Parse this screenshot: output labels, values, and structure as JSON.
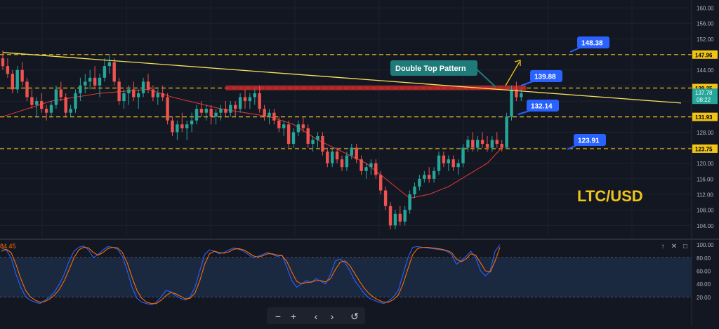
{
  "theme": {
    "background": "#131722",
    "grid": "#1e2230",
    "up": "#26a69a",
    "down": "#ef5350",
    "level_line": "#f0c419",
    "trendline": "#f5e15a",
    "ma_line": "#e53935",
    "callout_bg": "#2962ff",
    "pattern_bg": "#1f7a7a",
    "zone": "#c62828",
    "stoch_k": "#2962ff",
    "stoch_d": "#ff6d00",
    "osc_band": "#1c2a44",
    "pair_label": "#f0c419",
    "axis_text": "#b2b5be"
  },
  "chart_data": [
    {
      "type": "candlestick",
      "title": "LTC/USD",
      "ylim": [
        101,
        162
      ],
      "y_ticks": [
        104,
        108,
        112,
        116,
        120,
        124,
        128,
        132,
        136,
        140,
        144,
        148,
        152,
        156,
        160
      ],
      "y_tick_labels": [
        "104.00",
        "108.00",
        "112.00",
        "116.00",
        "120.00",
        "124.00",
        "128.00",
        "132.00",
        "136.00",
        "140.00",
        "144.00",
        "148.00",
        "152.00",
        "156.00",
        "160.00"
      ],
      "ohlc": [
        [
          147,
          149,
          144,
          145
        ],
        [
          145,
          147,
          142,
          143
        ],
        [
          143,
          144,
          138,
          139
        ],
        [
          139,
          145,
          138,
          144
        ],
        [
          144,
          146,
          140,
          141
        ],
        [
          141,
          142,
          136,
          137
        ],
        [
          137,
          139,
          134,
          135
        ],
        [
          135,
          137,
          132,
          136
        ],
        [
          136,
          138,
          133,
          134
        ],
        [
          134,
          135,
          131,
          133
        ],
        [
          133,
          136,
          132,
          135
        ],
        [
          135,
          140,
          134,
          139
        ],
        [
          139,
          141,
          136,
          137
        ],
        [
          137,
          138,
          132,
          133
        ],
        [
          133,
          135,
          132,
          134
        ],
        [
          134,
          139,
          133,
          138
        ],
        [
          138,
          142,
          136,
          140
        ],
        [
          140,
          143,
          138,
          141
        ],
        [
          141,
          144,
          139,
          142
        ],
        [
          142,
          145,
          139,
          140
        ],
        [
          140,
          143,
          137,
          142
        ],
        [
          142,
          147,
          141,
          145
        ],
        [
          145,
          148,
          143,
          146
        ],
        [
          146,
          147,
          140,
          141
        ],
        [
          141,
          142,
          135,
          136
        ],
        [
          136,
          139,
          134,
          138
        ],
        [
          138,
          140,
          135,
          139
        ],
        [
          139,
          141,
          136,
          137
        ],
        [
          137,
          139,
          134,
          138
        ],
        [
          138,
          142,
          137,
          141
        ],
        [
          141,
          143,
          138,
          139
        ],
        [
          139,
          140,
          136,
          137
        ],
        [
          137,
          139,
          135,
          138
        ],
        [
          138,
          140,
          136,
          137
        ],
        [
          137,
          138,
          130,
          131
        ],
        [
          131,
          132,
          127,
          128
        ],
        [
          128,
          131,
          126,
          130
        ],
        [
          130,
          133,
          128,
          129
        ],
        [
          129,
          131,
          126,
          130
        ],
        [
          130,
          133,
          128,
          131
        ],
        [
          131,
          135,
          130,
          134
        ],
        [
          134,
          136,
          132,
          133
        ],
        [
          133,
          135,
          131,
          134
        ],
        [
          134,
          135,
          130,
          132
        ],
        [
          132,
          134,
          130,
          133
        ],
        [
          133,
          135,
          131,
          134
        ],
        [
          134,
          136,
          132,
          133
        ],
        [
          133,
          136,
          132,
          135
        ],
        [
          135,
          136,
          132,
          134
        ],
        [
          134,
          138,
          133,
          137
        ],
        [
          137,
          139,
          134,
          136
        ],
        [
          136,
          138,
          134,
          137
        ],
        [
          137,
          139,
          135,
          138
        ],
        [
          138,
          140,
          133,
          134
        ],
        [
          134,
          135,
          131,
          132
        ],
        [
          132,
          134,
          130,
          133
        ],
        [
          133,
          134,
          130,
          131
        ],
        [
          131,
          132,
          128,
          129
        ],
        [
          129,
          131,
          127,
          130
        ],
        [
          130,
          131,
          124,
          125
        ],
        [
          125,
          129,
          124,
          128
        ],
        [
          128,
          131,
          127,
          130
        ],
        [
          130,
          132,
          128,
          129
        ],
        [
          129,
          130,
          124,
          125
        ],
        [
          125,
          127,
          123,
          126
        ],
        [
          126,
          128,
          124,
          127
        ],
        [
          127,
          128,
          122,
          123
        ],
        [
          123,
          124,
          119,
          120
        ],
        [
          120,
          124,
          119,
          123
        ],
        [
          123,
          124,
          120,
          121
        ],
        [
          121,
          122,
          118,
          119
        ],
        [
          119,
          123,
          118,
          122
        ],
        [
          122,
          125,
          121,
          124
        ],
        [
          124,
          125,
          120,
          121
        ],
        [
          121,
          122,
          117,
          118
        ],
        [
          118,
          120,
          116,
          119
        ],
        [
          119,
          121,
          117,
          120
        ],
        [
          120,
          121,
          116,
          117
        ],
        [
          117,
          118,
          112,
          113
        ],
        [
          113,
          114,
          108,
          109
        ],
        [
          109,
          110,
          103,
          104
        ],
        [
          104,
          108,
          103,
          107
        ],
        [
          107,
          109,
          104,
          105
        ],
        [
          105,
          109,
          104,
          108
        ],
        [
          108,
          113,
          107,
          112
        ],
        [
          112,
          115,
          111,
          114
        ],
        [
          114,
          117,
          113,
          116
        ],
        [
          116,
          118,
          115,
          117
        ],
        [
          117,
          119,
          115,
          116
        ],
        [
          116,
          119,
          115,
          118
        ],
        [
          118,
          123,
          117,
          122
        ],
        [
          122,
          123,
          119,
          120
        ],
        [
          120,
          122,
          118,
          121
        ],
        [
          121,
          122,
          118,
          119
        ],
        [
          119,
          121,
          117,
          120
        ],
        [
          120,
          125,
          119,
          124
        ],
        [
          124,
          127,
          123,
          126
        ],
        [
          126,
          128,
          123,
          124
        ],
        [
          124,
          127,
          123,
          126
        ],
        [
          126,
          128,
          124,
          125
        ],
        [
          125,
          127,
          123,
          124
        ],
        [
          124,
          127,
          123,
          126
        ],
        [
          126,
          128,
          124,
          125
        ],
        [
          125,
          126,
          123,
          124
        ],
        [
          124,
          133,
          124,
          132
        ],
        [
          132,
          140,
          131,
          139
        ],
        [
          139,
          141,
          136,
          137
        ],
        [
          137,
          139,
          136,
          138
        ]
      ],
      "ma": [
        [
          0,
          132
        ],
        [
          10,
          136
        ],
        [
          20,
          138
        ],
        [
          30,
          139
        ],
        [
          35,
          137
        ],
        [
          45,
          134
        ],
        [
          55,
          132
        ],
        [
          60,
          130
        ],
        [
          65,
          126
        ],
        [
          70,
          123
        ],
        [
          75,
          120
        ],
        [
          80,
          115
        ],
        [
          84,
          111
        ],
        [
          88,
          112
        ],
        [
          92,
          114
        ],
        [
          96,
          117
        ],
        [
          100,
          120
        ],
        [
          103,
          124
        ]
      ],
      "levels": [
        {
          "price": 147.96,
          "label": "147.96"
        },
        {
          "price": 139.35,
          "label": "139.35"
        },
        {
          "price": 131.93,
          "label": "131.93"
        },
        {
          "price": 123.75,
          "label": "123.75"
        }
      ],
      "last_price": {
        "value": "137.78",
        "countdown": "08:22"
      },
      "trendline": [
        [
          0,
          148.5
        ],
        [
          140,
          135.5
        ]
      ],
      "resistance_zone": {
        "from_index": 46,
        "to_index": 108,
        "low": 138.8,
        "high": 140.0
      },
      "callouts": [
        {
          "text": "148.38",
          "pos": "right-top"
        },
        {
          "text": "139.88",
          "pos": "right-upper"
        },
        {
          "text": "132.14",
          "pos": "right-mid"
        },
        {
          "text": "123.91",
          "pos": "right-low"
        }
      ],
      "pattern_label": "Double Top Pattern"
    },
    {
      "type": "line",
      "indicator_value": "84.45",
      "ylim": [
        0,
        104
      ],
      "y_ticks": [
        20,
        40,
        60,
        80,
        100
      ],
      "y_tick_labels": [
        "20.00",
        "40.00",
        "60.00",
        "80.00",
        "100.00"
      ],
      "band": [
        20,
        80
      ],
      "series": [
        {
          "values": [
            95,
            92,
            80,
            55,
            35,
            20,
            15,
            12,
            10,
            15,
            20,
            28,
            40,
            55,
            75,
            90,
            96,
            98,
            92,
            80,
            85,
            92,
            97,
            96,
            93,
            82,
            60,
            35,
            18,
            12,
            10,
            8,
            12,
            20,
            30,
            28,
            22,
            18,
            15,
            20,
            35,
            60,
            85,
            92,
            90,
            86,
            88,
            92,
            95,
            93,
            90,
            85,
            80,
            82,
            85,
            88,
            85,
            82,
            84,
            65,
            45,
            35,
            40,
            45,
            42,
            48,
            44,
            40,
            55,
            75,
            78,
            72,
            60,
            45,
            35,
            25,
            18,
            15,
            12,
            10,
            14,
            20,
            30,
            55,
            80,
            96,
            97,
            96,
            95,
            94,
            93,
            92,
            90,
            85,
            70,
            75,
            82,
            90,
            80,
            60,
            52,
            60,
            90,
            100
          ]
        },
        {
          "values": [
            90,
            93,
            88,
            70,
            48,
            30,
            20,
            15,
            12,
            13,
            17,
            23,
            32,
            45,
            62,
            80,
            92,
            96,
            95,
            88,
            84,
            88,
            94,
            96,
            95,
            88,
            72,
            50,
            30,
            18,
            12,
            10,
            10,
            15,
            22,
            27,
            25,
            21,
            17,
            18,
            26,
            45,
            70,
            86,
            90,
            88,
            87,
            89,
            93,
            94,
            92,
            88,
            83,
            81,
            83,
            86,
            86,
            84,
            83,
            74,
            58,
            44,
            40,
            42,
            43,
            45,
            45,
            43,
            48,
            62,
            73,
            75,
            68,
            56,
            44,
            33,
            25,
            19,
            15,
            12,
            12,
            16,
            23,
            40,
            63,
            85,
            94,
            96,
            96,
            95,
            94,
            93,
            91,
            88,
            78,
            74,
            78,
            86,
            84,
            72,
            60,
            58,
            75,
            96
          ]
        }
      ]
    }
  ],
  "toolbar": {
    "minus": "−",
    "plus": "+",
    "prev": "‹",
    "next": "›",
    "reset": "↺"
  },
  "osc_controls": {
    "up": "↑",
    "close": "✕",
    "maximize": "□"
  }
}
